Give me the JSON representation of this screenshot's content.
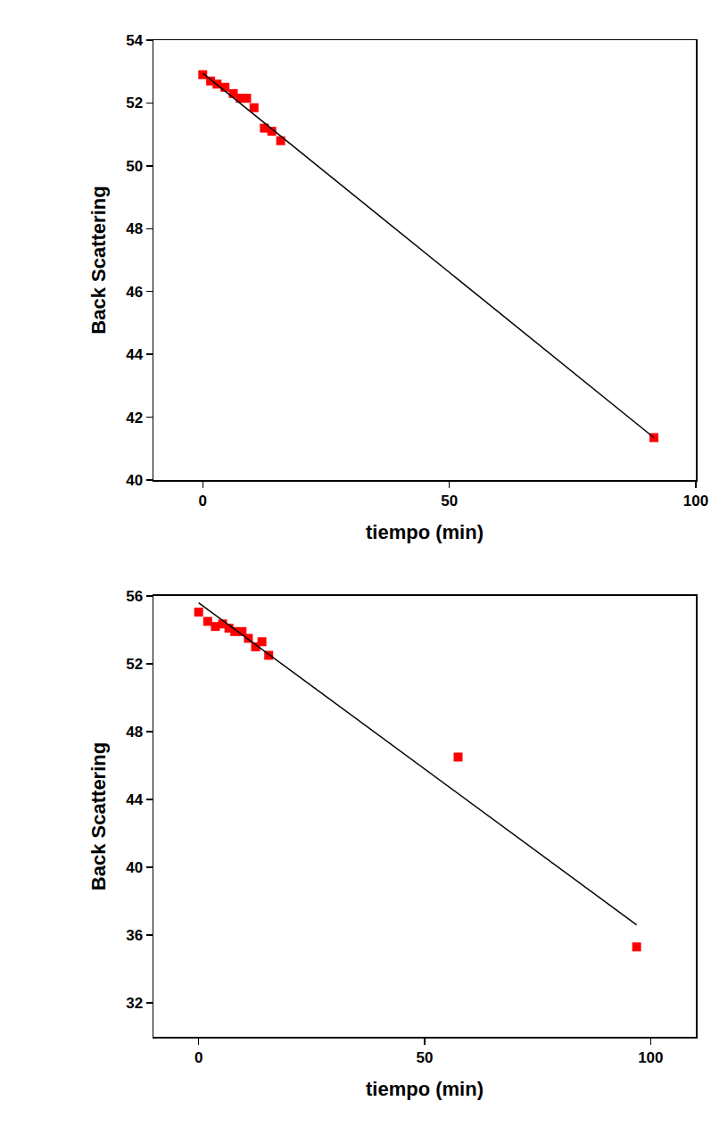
{
  "chart_data": [
    {
      "type": "scatter",
      "x_label": "tiempo (min)",
      "y_label": "Back Scattering",
      "xlim": [
        -10,
        100
      ],
      "xticks": [
        0,
        50,
        100
      ],
      "ylim": [
        40,
        54
      ],
      "yticks": [
        40,
        42,
        44,
        46,
        48,
        50,
        52,
        54
      ],
      "grid": false,
      "series": [
        {
          "type": "scatter",
          "marker": "square",
          "color": "#ff0000",
          "x": [
            0,
            1.6,
            2.9,
            4.5,
            6.2,
            7.6,
            8.9,
            10.4,
            12.5,
            14,
            15.8,
            91.5
          ],
          "values": [
            52.9,
            52.7,
            52.6,
            52.5,
            52.3,
            52.15,
            52.15,
            51.85,
            51.2,
            51.1,
            50.8,
            41.35
          ]
        },
        {
          "type": "line",
          "line_style": "solid",
          "color": "#000000",
          "x": [
            0,
            91.5
          ],
          "values": [
            52.95,
            41.35
          ]
        }
      ]
    },
    {
      "type": "scatter",
      "x_label": "tiempo (min)",
      "y_label": "Back Scattering",
      "xlim": [
        -10,
        110
      ],
      "xticks": [
        0,
        50,
        100
      ],
      "ylim": [
        30,
        56
      ],
      "yticks": [
        32,
        36,
        40,
        44,
        48,
        52,
        56
      ],
      "grid": false,
      "series": [
        {
          "type": "scatter",
          "marker": "square",
          "color": "#ff0000",
          "x": [
            0,
            2,
            3.7,
            5.3,
            6.7,
            8,
            9.6,
            11,
            12.6,
            14,
            15.5,
            57.4,
            96.9
          ],
          "values": [
            55.05,
            54.5,
            54.2,
            54.35,
            54.1,
            53.9,
            53.9,
            53.5,
            53.0,
            53.3,
            52.5,
            46.5,
            35.3
          ]
        },
        {
          "type": "line",
          "line_style": "solid",
          "color": "#000000",
          "x": [
            0,
            96.9
          ],
          "values": [
            55.6,
            36.6
          ]
        }
      ]
    }
  ]
}
